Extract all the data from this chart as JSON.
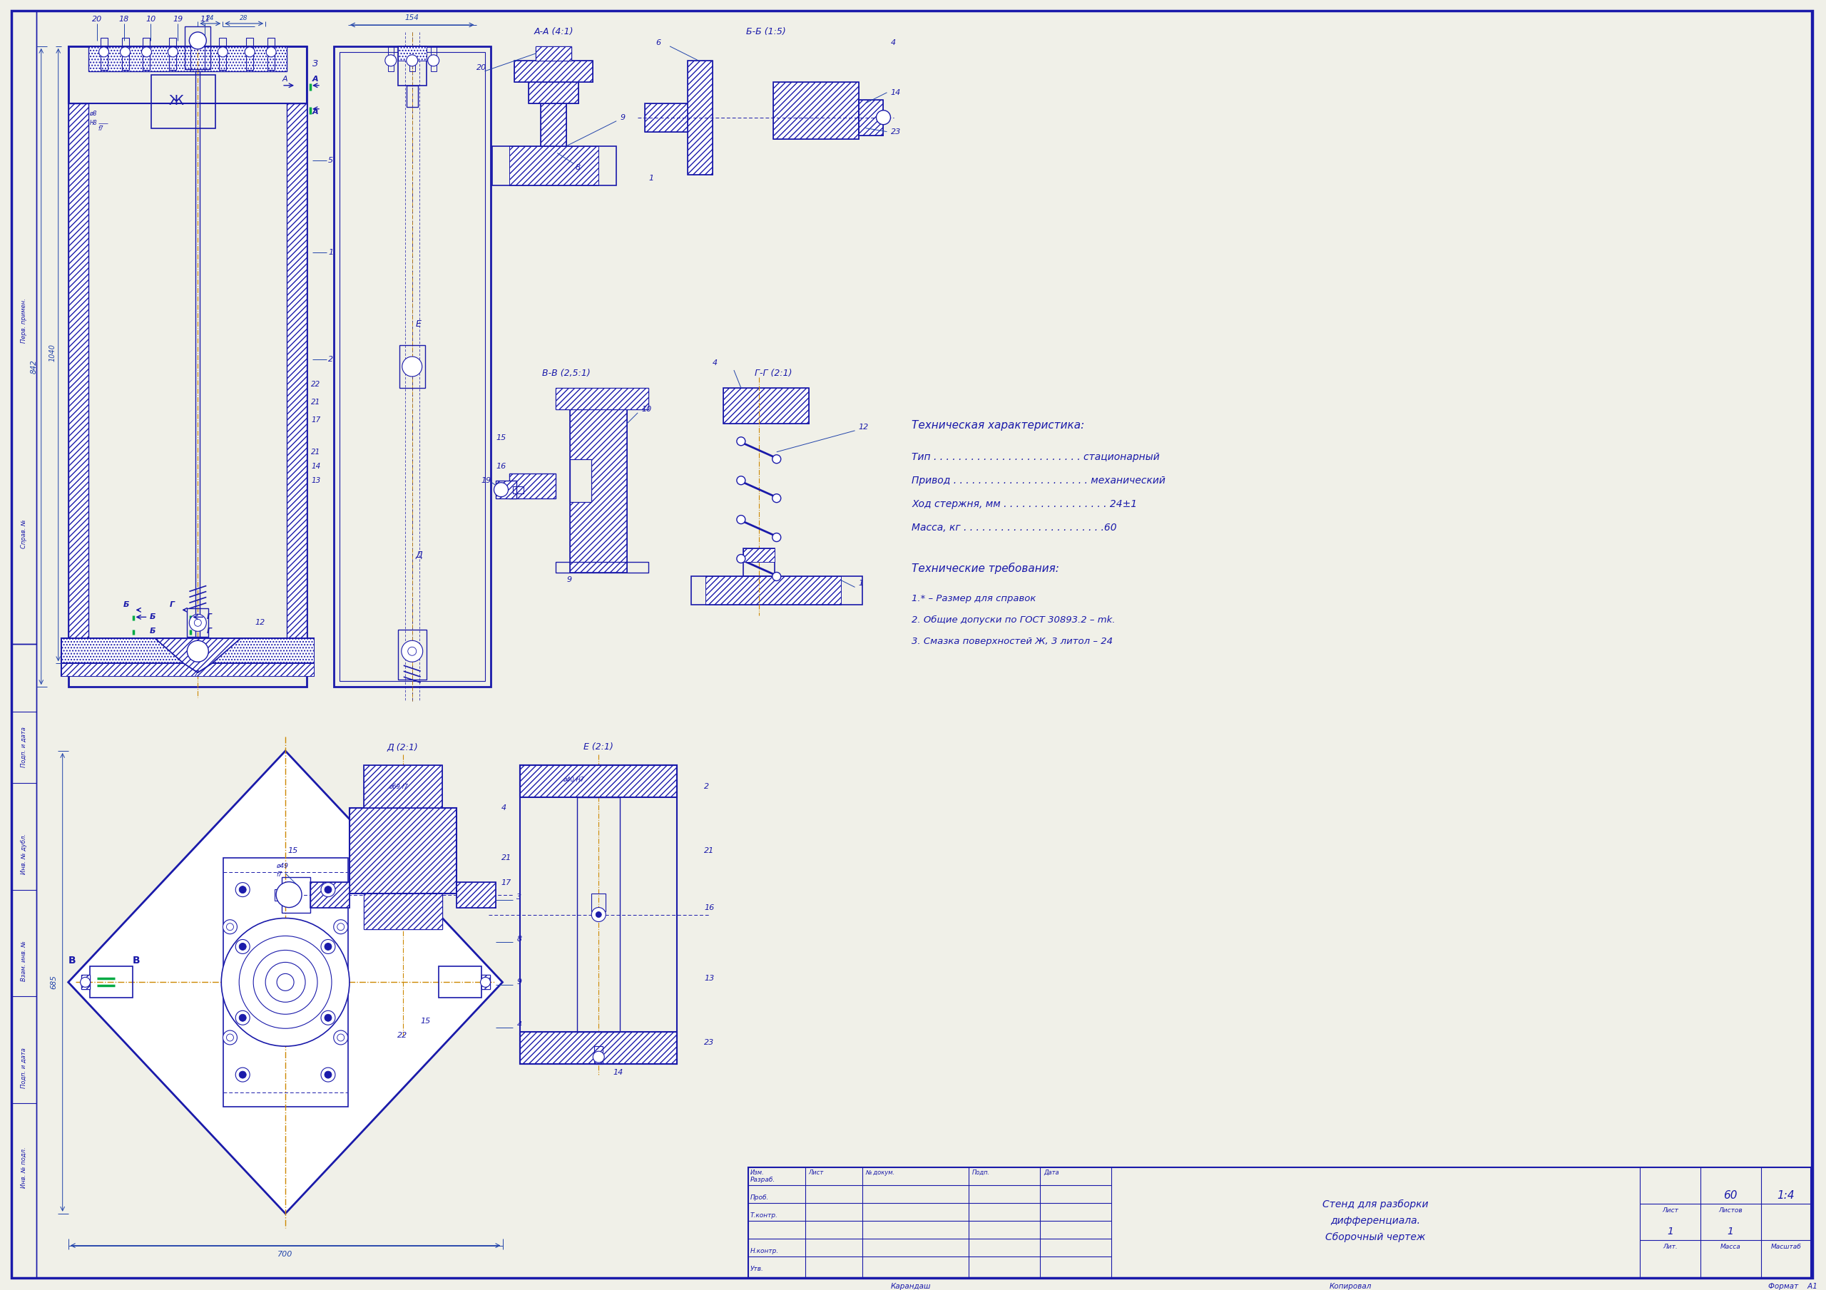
{
  "bg_color": "#f0f0e8",
  "line_color": "#1a1aaa",
  "text_color": "#1a1aaa",
  "dim_color": "#2244aa",
  "orange_color": "#cc8800",
  "green_color": "#00aa44",
  "tech_char_title": "Техническая характеристика:",
  "tech_char": [
    "Тип . . . . . . . . . . . . . . . . . . . . . . . . стационарный",
    "Привод . . . . . . . . . . . . . . . . . . . . . . механический",
    "Ход стержня, мм . . . . . . . . . . . . . . . . . 24±1",
    "Масса, кг . . . . . . . . . . . . . . . . . . . . . . .60"
  ],
  "tech_req_title": "Технические требования:",
  "tech_req": [
    "1.* – Размер для справок",
    "2. Общие допуски по ГОСТ 30893.2 – mk.",
    "3. Смазка поверхностей Ж, 3 литол – 24"
  ],
  "title_block": {
    "title1": "Стенд для разборки",
    "title2": "дифференциала.",
    "title3": "Сборочный чертеж",
    "mass": "60",
    "scale": "1:4",
    "sheet": "1",
    "sheets": "1"
  },
  "section_labels": {
    "AA": "А-А (4:1)",
    "BB": "Б-Б (1:5)",
    "VV": "В-В (2,5:1)",
    "GG": "Г-Г (2:1)",
    "DD": "Д (2:1)",
    "EE": "Е (2:1)"
  }
}
